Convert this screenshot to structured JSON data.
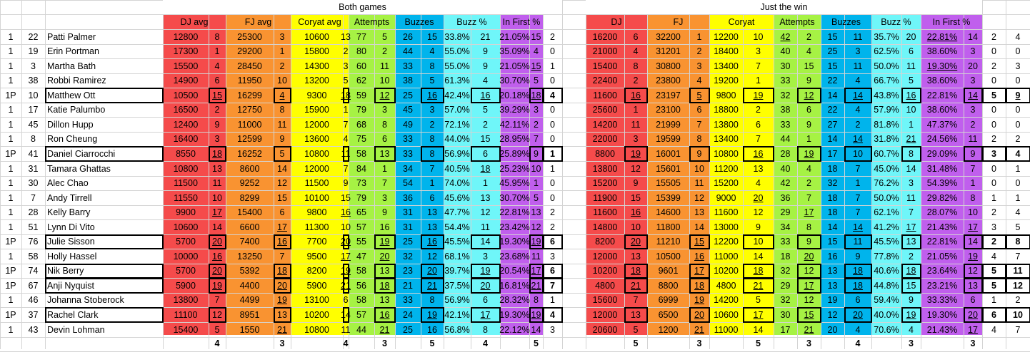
{
  "group_headers": {
    "both": "Both games",
    "win": "Just the win"
  },
  "column_headers": {
    "both": [
      "DJ avg",
      "FJ avg",
      "Coryat avg",
      "Attempts",
      "Buzzes",
      "Buzz %",
      "In First %"
    ],
    "win": [
      "DJ",
      "FJ",
      "Coryat",
      "Attempts",
      "Buzzes",
      "Buzz %",
      "In First %"
    ]
  },
  "colors": {
    "dj": "#f54b4b",
    "fj": "#f99331",
    "coryat": "#ffff00",
    "attempts": "#a6f244",
    "buzzes": "#00b4ec",
    "buzzpct": "#6ff6f9",
    "infirst": "#c05fed",
    "grid": "#d4d4d4"
  },
  "rows": [
    {
      "s": "1",
      "n": "22",
      "name": "Patti Palmer",
      "both": [
        "12800",
        "8",
        "25300",
        "3",
        "10600",
        "13",
        "77",
        "5",
        "26",
        "15",
        "33.8%",
        "21",
        "21.05%",
        "15",
        "2"
      ],
      "win": [
        "16200",
        "6",
        "32200",
        "1",
        "12200",
        "10",
        "42",
        "2",
        "15",
        "11",
        "35.7%",
        "20",
        "22.81%",
        "14",
        "2",
        "4"
      ],
      "hl": false,
      "u": [
        21,
        27,
        37,
        47
      ]
    },
    {
      "s": "1",
      "n": "19",
      "name": "Erin Portman",
      "both": [
        "17300",
        "1",
        "29200",
        "1",
        "15800",
        "2",
        "80",
        "2",
        "44",
        "4",
        "55.0%",
        "9",
        "35.09%",
        "4",
        "0"
      ],
      "win": [
        "21000",
        "4",
        "31201",
        "2",
        "18400",
        "3",
        "40",
        "4",
        "25",
        "3",
        "62.5%",
        "6",
        "38.60%",
        "3",
        "0",
        "0"
      ],
      "hl": false,
      "u": []
    },
    {
      "s": "1",
      "n": "3",
      "name": "Martha Bath",
      "both": [
        "15500",
        "4",
        "28450",
        "2",
        "14300",
        "3",
        "60",
        "11",
        "33",
        "8",
        "55.0%",
        "9",
        "21.05%",
        "15",
        "1"
      ],
      "win": [
        "15400",
        "8",
        "30800",
        "3",
        "13400",
        "7",
        "30",
        "15",
        "15",
        "11",
        "50.0%",
        "11",
        "19.30%",
        "20",
        "2",
        "3"
      ],
      "hl": false,
      "u": [
        13,
        27,
        37,
        43
      ]
    },
    {
      "s": "1",
      "n": "38",
      "name": "Robbi Ramirez",
      "both": [
        "14900",
        "6",
        "11950",
        "10",
        "13200",
        "5",
        "62",
        "10",
        "38",
        "5",
        "61.3%",
        "4",
        "30.70%",
        "5",
        "0"
      ],
      "win": [
        "22400",
        "2",
        "23800",
        "4",
        "19200",
        "1",
        "33",
        "9",
        "22",
        "4",
        "66.7%",
        "5",
        "38.60%",
        "3",
        "0",
        "0"
      ],
      "hl": false,
      "u": []
    },
    {
      "s": "1P",
      "n": "10",
      "name": "Matthew Ott",
      "both": [
        "10500",
        "15",
        "16299",
        "4",
        "9300",
        "18",
        "59",
        "12",
        "25",
        "16",
        "42.4%",
        "16",
        "20.18%",
        "18",
        "4"
      ],
      "win": [
        "11600",
        "16",
        "23197",
        "5",
        "9800",
        "19",
        "32",
        "12",
        "14",
        "14",
        "43.8%",
        "16",
        "22.81%",
        "14",
        "5",
        "9"
      ],
      "hl": true,
      "u": [
        1,
        3,
        5,
        7,
        9,
        11,
        13,
        16,
        18,
        20,
        22,
        24,
        26,
        28,
        30
      ],
      "bold": [
        14,
        29,
        30
      ]
    },
    {
      "s": "1",
      "n": "17",
      "name": "Katie Palumbo",
      "both": [
        "16500",
        "2",
        "12750",
        "8",
        "15900",
        "1",
        "79",
        "3",
        "45",
        "3",
        "57.0%",
        "5",
        "39.29%",
        "3",
        "0"
      ],
      "win": [
        "25600",
        "1",
        "23100",
        "6",
        "18800",
        "2",
        "38",
        "6",
        "22",
        "4",
        "57.9%",
        "10",
        "38.60%",
        "3",
        "0",
        "0"
      ],
      "hl": false,
      "u": []
    },
    {
      "s": "1",
      "n": "45",
      "name": "Dillon Hupp",
      "both": [
        "12400",
        "9",
        "11000",
        "11",
        "12000",
        "7",
        "68",
        "8",
        "49",
        "2",
        "72.1%",
        "2",
        "42.11%",
        "2",
        "0"
      ],
      "win": [
        "14200",
        "11",
        "21999",
        "7",
        "13800",
        "6",
        "33",
        "9",
        "27",
        "2",
        "81.8%",
        "1",
        "47.37%",
        "2",
        "0",
        "0"
      ],
      "hl": false,
      "u": []
    },
    {
      "s": "1",
      "n": "8",
      "name": "Ron Cheung",
      "both": [
        "16400",
        "3",
        "12599",
        "9",
        "13600",
        "4",
        "75",
        "6",
        "33",
        "8",
        "44.0%",
        "15",
        "28.95%",
        "7",
        "0"
      ],
      "win": [
        "22000",
        "3",
        "19599",
        "8",
        "13400",
        "7",
        "44",
        "1",
        "14",
        "14",
        "31.8%",
        "21",
        "24.56%",
        "11",
        "2",
        "2"
      ],
      "hl": false,
      "u": [
        24,
        26
      ]
    },
    {
      "s": "1P",
      "n": "41",
      "name": "Daniel Ciarrocchi",
      "both": [
        "8550",
        "18",
        "16252",
        "5",
        "10800",
        "11",
        "58",
        "13",
        "33",
        "8",
        "56.9%",
        "6",
        "25.89%",
        "9",
        "1"
      ],
      "win": [
        "8800",
        "19",
        "16001",
        "9",
        "10800",
        "16",
        "28",
        "19",
        "17",
        "10",
        "60.7%",
        "8",
        "29.09%",
        "9",
        "3",
        "4"
      ],
      "hl": true,
      "u": [
        1,
        16,
        20,
        22
      ],
      "bold": [
        14,
        29,
        30
      ]
    },
    {
      "s": "1",
      "n": "31",
      "name": "Tamara Ghattas",
      "both": [
        "10800",
        "13",
        "8600",
        "14",
        "12000",
        "7",
        "84",
        "1",
        "34",
        "7",
        "40.5%",
        "18",
        "25.23%",
        "10",
        "1"
      ],
      "win": [
        "13800",
        "12",
        "15601",
        "10",
        "11200",
        "13",
        "40",
        "4",
        "18",
        "7",
        "45.0%",
        "14",
        "31.48%",
        "7",
        "0",
        "1"
      ],
      "hl": false,
      "u": [
        11
      ]
    },
    {
      "s": "1",
      "n": "30",
      "name": "Alec Chao",
      "both": [
        "11500",
        "11",
        "9252",
        "12",
        "11500",
        "9",
        "73",
        "7",
        "54",
        "1",
        "74.0%",
        "1",
        "45.95%",
        "1",
        "0"
      ],
      "win": [
        "15200",
        "9",
        "15505",
        "11",
        "15200",
        "4",
        "42",
        "2",
        "32",
        "1",
        "76.2%",
        "3",
        "54.39%",
        "1",
        "0",
        "0"
      ],
      "hl": false,
      "u": []
    },
    {
      "s": "1",
      "n": "7",
      "name": "Andy Tirrell",
      "both": [
        "11550",
        "10",
        "8299",
        "15",
        "10100",
        "15",
        "79",
        "3",
        "36",
        "6",
        "45.6%",
        "13",
        "30.70%",
        "5",
        "0"
      ],
      "win": [
        "11900",
        "15",
        "15399",
        "12",
        "9000",
        "20",
        "36",
        "7",
        "18",
        "7",
        "50.0%",
        "11",
        "29.82%",
        "8",
        "1",
        "1"
      ],
      "hl": false,
      "u": [
        20
      ]
    },
    {
      "s": "1",
      "n": "28",
      "name": "Kelly Barry",
      "both": [
        "9900",
        "17",
        "15400",
        "6",
        "9800",
        "16",
        "65",
        "9",
        "31",
        "13",
        "47.7%",
        "12",
        "22.81%",
        "13",
        "2"
      ],
      "win": [
        "11600",
        "16",
        "14600",
        "13",
        "11600",
        "12",
        "29",
        "17",
        "18",
        "7",
        "62.1%",
        "7",
        "28.07%",
        "10",
        "2",
        "4"
      ],
      "hl": false,
      "u": [
        1,
        5,
        16,
        22
      ]
    },
    {
      "s": "1",
      "n": "51",
      "name": "Lynn Di Vito",
      "both": [
        "10600",
        "14",
        "6600",
        "17",
        "11300",
        "10",
        "57",
        "16",
        "31",
        "13",
        "54.4%",
        "11",
        "23.42%",
        "12",
        "2"
      ],
      "win": [
        "14800",
        "10",
        "11800",
        "14",
        "13000",
        "9",
        "34",
        "8",
        "14",
        "14",
        "41.2%",
        "17",
        "21.43%",
        "17",
        "3",
        "5"
      ],
      "hl": false,
      "u": [
        3,
        24,
        26,
        28
      ]
    },
    {
      "s": "1P",
      "n": "76",
      "name": "Julie Sisson",
      "both": [
        "5700",
        "20",
        "7400",
        "16",
        "7700",
        "20",
        "55",
        "19",
        "25",
        "16",
        "45.5%",
        "14",
        "19.30%",
        "19",
        "6"
      ],
      "win": [
        "8200",
        "20",
        "11210",
        "15",
        "12200",
        "10",
        "33",
        "9",
        "15",
        "11",
        "45.5%",
        "13",
        "22.81%",
        "14",
        "2",
        "8"
      ],
      "hl": true,
      "u": [
        1,
        3,
        5,
        7,
        9,
        13,
        16,
        18
      ],
      "bold": [
        14,
        29,
        30
      ]
    },
    {
      "s": "1",
      "n": "58",
      "name": "Holly Hassel",
      "both": [
        "10000",
        "16",
        "13250",
        "7",
        "9500",
        "17",
        "47",
        "20",
        "32",
        "12",
        "68.1%",
        "3",
        "23.68%",
        "11",
        "3"
      ],
      "win": [
        "12000",
        "13",
        "10500",
        "16",
        "11000",
        "14",
        "18",
        "20",
        "16",
        "9",
        "77.8%",
        "2",
        "21.05%",
        "19",
        "4",
        "7"
      ],
      "hl": false,
      "u": [
        1,
        5,
        7,
        18,
        22,
        28
      ]
    },
    {
      "s": "1P",
      "n": "74",
      "name": "Nik Berry",
      "both": [
        "5700",
        "20",
        "5392",
        "18",
        "8200",
        "19",
        "58",
        "13",
        "23",
        "20",
        "39.7%",
        "19",
        "20.54%",
        "17",
        "6"
      ],
      "win": [
        "10200",
        "18",
        "9601",
        "17",
        "10200",
        "18",
        "32",
        "12",
        "13",
        "18",
        "40.6%",
        "18",
        "23.64%",
        "12",
        "5",
        "11"
      ],
      "hl": true,
      "u": [
        1,
        3,
        5,
        9,
        11,
        13,
        16,
        18,
        20,
        24,
        26
      ],
      "bold": [
        14,
        29,
        30
      ]
    },
    {
      "s": "1P",
      "n": "67",
      "name": "Anji Nyquist",
      "both": [
        "5900",
        "19",
        "4400",
        "20",
        "5900",
        "21",
        "56",
        "18",
        "21",
        "21",
        "37.5%",
        "20",
        "16.81%",
        "21",
        "7"
      ],
      "win": [
        "4800",
        "21",
        "8800",
        "18",
        "4800",
        "21",
        "29",
        "17",
        "13",
        "18",
        "44.8%",
        "15",
        "23.21%",
        "13",
        "5",
        "12"
      ],
      "hl": true,
      "u": [
        1,
        3,
        5,
        7,
        9,
        11,
        13,
        16,
        18,
        20,
        22,
        24
      ],
      "bold": [
        14,
        29,
        30
      ]
    },
    {
      "s": "1",
      "n": "46",
      "name": "Johanna Stoberock",
      "both": [
        "13800",
        "7",
        "4499",
        "19",
        "13100",
        "6",
        "58",
        "13",
        "33",
        "8",
        "56.9%",
        "6",
        "28.32%",
        "8",
        "1"
      ],
      "win": [
        "15600",
        "7",
        "6999",
        "19",
        "14200",
        "5",
        "32",
        "12",
        "19",
        "6",
        "59.4%",
        "9",
        "33.33%",
        "6",
        "1",
        "2"
      ],
      "hl": false,
      "u": [
        3,
        18
      ]
    },
    {
      "s": "1P",
      "n": "37",
      "name": "Rachel Clark",
      "both": [
        "11100",
        "12",
        "8951",
        "13",
        "10200",
        "14",
        "57",
        "16",
        "24",
        "19",
        "42.1%",
        "17",
        "19.30%",
        "19",
        "4"
      ],
      "win": [
        "12000",
        "13",
        "6500",
        "20",
        "10600",
        "17",
        "30",
        "15",
        "12",
        "20",
        "40.0%",
        "19",
        "19.30%",
        "20",
        "6",
        "10"
      ],
      "hl": true,
      "u": [
        7,
        9,
        11,
        13,
        18,
        20,
        22,
        24,
        26,
        28
      ],
      "bold": [
        14,
        29,
        30
      ]
    },
    {
      "s": "1",
      "n": "43",
      "name": "Devin Lohman",
      "both": [
        "15400",
        "5",
        "1550",
        "21",
        "10800",
        "11",
        "44",
        "21",
        "25",
        "16",
        "56.8%",
        "8",
        "22.12%",
        "14",
        "3"
      ],
      "win": [
        "20600",
        "5",
        "1200",
        "21",
        "11000",
        "14",
        "17",
        "21",
        "20",
        "4",
        "70.6%",
        "4",
        "21.43%",
        "17",
        "4",
        "7"
      ],
      "hl": false,
      "u": [
        3,
        7,
        18,
        22,
        28
      ]
    }
  ],
  "summary": {
    "both": [
      "4",
      "3",
      "4",
      "3",
      "5",
      "4",
      "5"
    ],
    "win": [
      "5",
      "3",
      "5",
      "3",
      "4",
      "3",
      "3"
    ]
  }
}
